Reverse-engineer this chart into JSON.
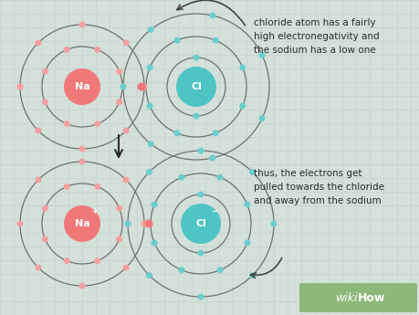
{
  "bg_color": "#d4e0da",
  "grid_color": "#c0d0ca",
  "na_color": "#f07878",
  "cl_color": "#4ec4c4",
  "electron_color_na": "#f4a0a0",
  "electron_color_cl": "#6bcece",
  "shell_color": "#707070",
  "text_color": "#2a2a2a",
  "annotation_color": "#444444",
  "wikihow_bg": "#8db87a",
  "top_annotation": "chloride atom has a fairly\nhigh electronegativity and\nthe sodium has a low one",
  "bottom_annotation": "thus, the electrons get\npulled towards the chloride\nand away from the sodium",
  "na_label": "Na",
  "na_ion_label": "Na",
  "na_ion_sup": "+",
  "cl_label": "Cl",
  "cl_ion_label": "Cl",
  "cl_ion_sup": "−"
}
